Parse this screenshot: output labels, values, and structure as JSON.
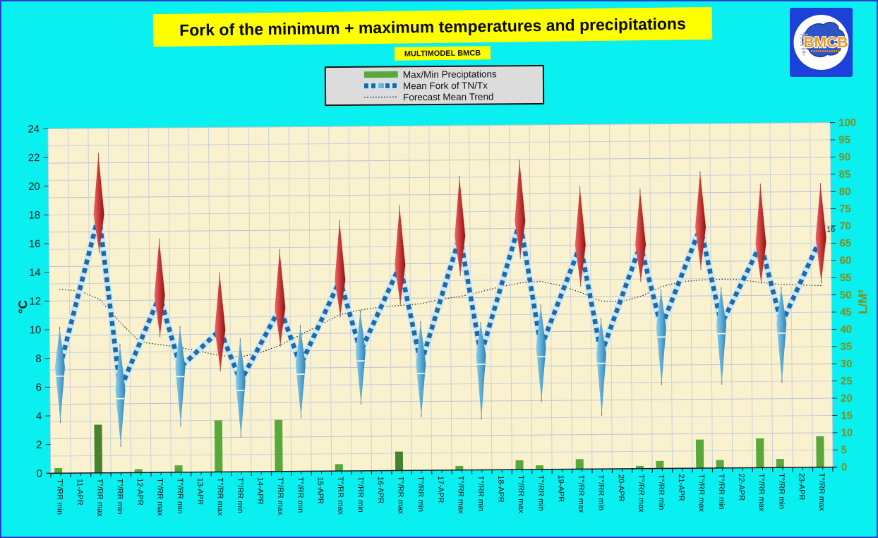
{
  "page": {
    "background": "#0AEFEF",
    "border_color": "#2E3EC8"
  },
  "header": {
    "title": "Fork of the minimum + maximum temperatures and precipitations",
    "title_bg": "#FFFF00",
    "subtitle": "MULTIMODEL BMCB",
    "subtitle_bg": "#FFFF00"
  },
  "legend": {
    "items": [
      {
        "label": "Max/Min Preciptations",
        "marker": "green-bar",
        "color": "#58A93A"
      },
      {
        "label": "Mean Fork of TN/Tx",
        "marker": "blue-dashed-line",
        "color": "#1A6BA8"
      },
      {
        "label": "Forecast Mean Trend",
        "marker": "black-dotted-line",
        "color": "#111111"
      }
    ]
  },
  "logo": {
    "text": "BMCB",
    "bg": "#1C40D8",
    "text_color": "#E89A1E"
  },
  "chart_data": {
    "type": "combo: precipitation bars + temperature fork spindles + dashed mean zigzag line + dotted trend line",
    "left_axis": {
      "label": "°C",
      "min": 0,
      "max": 24,
      "step": 2,
      "color": "#161616"
    },
    "right_axis": {
      "label": "L/M²",
      "min": 0,
      "max": 100,
      "step": 5,
      "color": "#7F8F1A"
    },
    "x_label_pattern": [
      "T°/RR min",
      "T°/RR max"
    ],
    "days": [
      {
        "date": "11-APR",
        "min": {
          "mean": 7.4,
          "fork": [
            3.8,
            9.9
          ]
        },
        "max": {
          "mean": 18.0,
          "fork": [
            15.6,
            22.0
          ]
        },
        "precip": [
          1.5,
          0,
          14
        ]
      },
      {
        "date": "12-APR",
        "min": {
          "mean": 5.8,
          "fork": [
            2.1,
            8.7
          ]
        },
        "max": {
          "mean": 12.3,
          "fork": [
            9.7,
            16.0
          ]
        },
        "precip": [
          0,
          1,
          0
        ]
      },
      {
        "date": "13-APR",
        "min": {
          "mean": 7.3,
          "fork": [
            3.5,
            9.9
          ]
        },
        "max": {
          "mean": 9.9,
          "fork": [
            7.3,
            13.6
          ]
        },
        "precip": [
          2,
          0,
          15
        ]
      },
      {
        "date": "14-APR",
        "min": {
          "mean": 6.3,
          "fork": [
            2.7,
            9.0
          ]
        },
        "max": {
          "mean": 11.4,
          "fork": [
            9.0,
            15.2
          ]
        },
        "precip": [
          0,
          0,
          15
        ]
      },
      {
        "date": "15-APR",
        "min": {
          "mean": 7.4,
          "fork": [
            4.0,
            9.9
          ]
        },
        "max": {
          "mean": 13.3,
          "fork": [
            11.0,
            17.2
          ]
        },
        "precip": [
          0,
          0,
          2
        ]
      },
      {
        "date": "16-APR",
        "min": {
          "mean": 8.3,
          "fork": [
            4.9,
            10.9
          ]
        },
        "max": {
          "mean": 14.3,
          "fork": [
            11.8,
            18.2
          ]
        },
        "precip": [
          0,
          0,
          5.5
        ]
      },
      {
        "date": "17-APR",
        "min": {
          "mean": 7.4,
          "fork": [
            4.0,
            10.1
          ]
        },
        "max": {
          "mean": 16.3,
          "fork": [
            13.8,
            20.2
          ]
        },
        "precip": [
          0,
          0,
          1.2
        ]
      },
      {
        "date": "18-APR",
        "min": {
          "mean": 8.0,
          "fork": [
            3.8,
            10.0
          ]
        },
        "max": {
          "mean": 17.3,
          "fork": [
            15.0,
            21.3
          ]
        },
        "precip": [
          0,
          0,
          2.7
        ]
      },
      {
        "date": "19-APR",
        "min": {
          "mean": 8.5,
          "fork": [
            5.0,
            11.2
          ]
        },
        "max": {
          "mean": 15.6,
          "fork": [
            13.0,
            19.4
          ]
        },
        "precip": [
          1.2,
          0,
          2.9
        ]
      },
      {
        "date": "20-APR",
        "min": {
          "mean": 8.0,
          "fork": [
            4.0,
            10.2
          ]
        },
        "max": {
          "mean": 15.6,
          "fork": [
            13.3,
            19.2
          ]
        },
        "precip": [
          0,
          0,
          0.8
        ]
      },
      {
        "date": "21-APR",
        "min": {
          "mean": 9.8,
          "fork": [
            6.1,
            12.2
          ]
        },
        "max": {
          "mean": 16.8,
          "fork": [
            14.1,
            20.4
          ]
        },
        "precip": [
          2.2,
          0,
          8.3
        ]
      },
      {
        "date": "22-APR",
        "min": {
          "mean": 10.0,
          "fork": [
            6.1,
            12.3
          ]
        },
        "max": {
          "mean": 15.6,
          "fork": [
            13.1,
            19.5
          ]
        },
        "precip": [
          2.3,
          0,
          8.5
        ]
      },
      {
        "date": "23-APR",
        "min": {
          "mean": 10.0,
          "fork": [
            6.2,
            12.3
          ]
        },
        "max": {
          "mean": 16.0,
          "fork": [
            13.1,
            19.5
          ]
        },
        "precip": [
          2.5,
          0,
          9
        ]
      }
    ],
    "dark_bar_cols": [
      2,
      17
    ],
    "trend": [
      12.8,
      12.7,
      12.1,
      10.5,
      9.1,
      8.9,
      8.7,
      8.4,
      8.1,
      8.0,
      8.3,
      8.8,
      9.5,
      10.2,
      10.9,
      11.2,
      11.4,
      11.5,
      11.6,
      11.9,
      12.1,
      12.4,
      12.75,
      13.0,
      13.1,
      12.8,
      12.3,
      11.7,
      11.65,
      12.0,
      12.65,
      13.0,
      13.1,
      13.15,
      13.1,
      12.9,
      12.75,
      12.7,
      12.65
    ],
    "point_label": {
      "text": "16",
      "day": "23-APR",
      "series": "max"
    },
    "colors": {
      "plot_bg": "#FAF2CE",
      "grid": "#C8D0DE",
      "grid_major": "#B9C3D4",
      "bar": "#58A93A",
      "bar_dark": "#47822F",
      "mean_line": "#1A6BA8",
      "mean_line_casing": "#CFE7F4",
      "fork_max": [
        "#F06868",
        "#980C0C"
      ],
      "fork_min": [
        "#8FD0EE",
        "#2B84BA"
      ],
      "trend_line": "#161616"
    }
  }
}
